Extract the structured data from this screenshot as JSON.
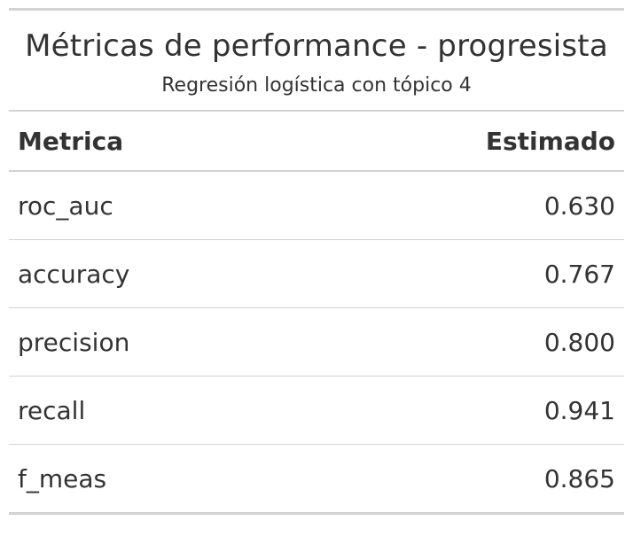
{
  "chart_data": {
    "type": "table",
    "title": "Métricas de performance - progresista",
    "subtitle": "Regresión logística con tópico 4",
    "columns": [
      "Metrica",
      "Estimado"
    ],
    "rows": [
      {
        "metric": "roc_auc",
        "value": "0.630"
      },
      {
        "metric": "accuracy",
        "value": "0.767"
      },
      {
        "metric": "precision",
        "value": "0.800"
      },
      {
        "metric": "recall",
        "value": "0.941"
      },
      {
        "metric": "f_meas",
        "value": "0.865"
      }
    ]
  }
}
